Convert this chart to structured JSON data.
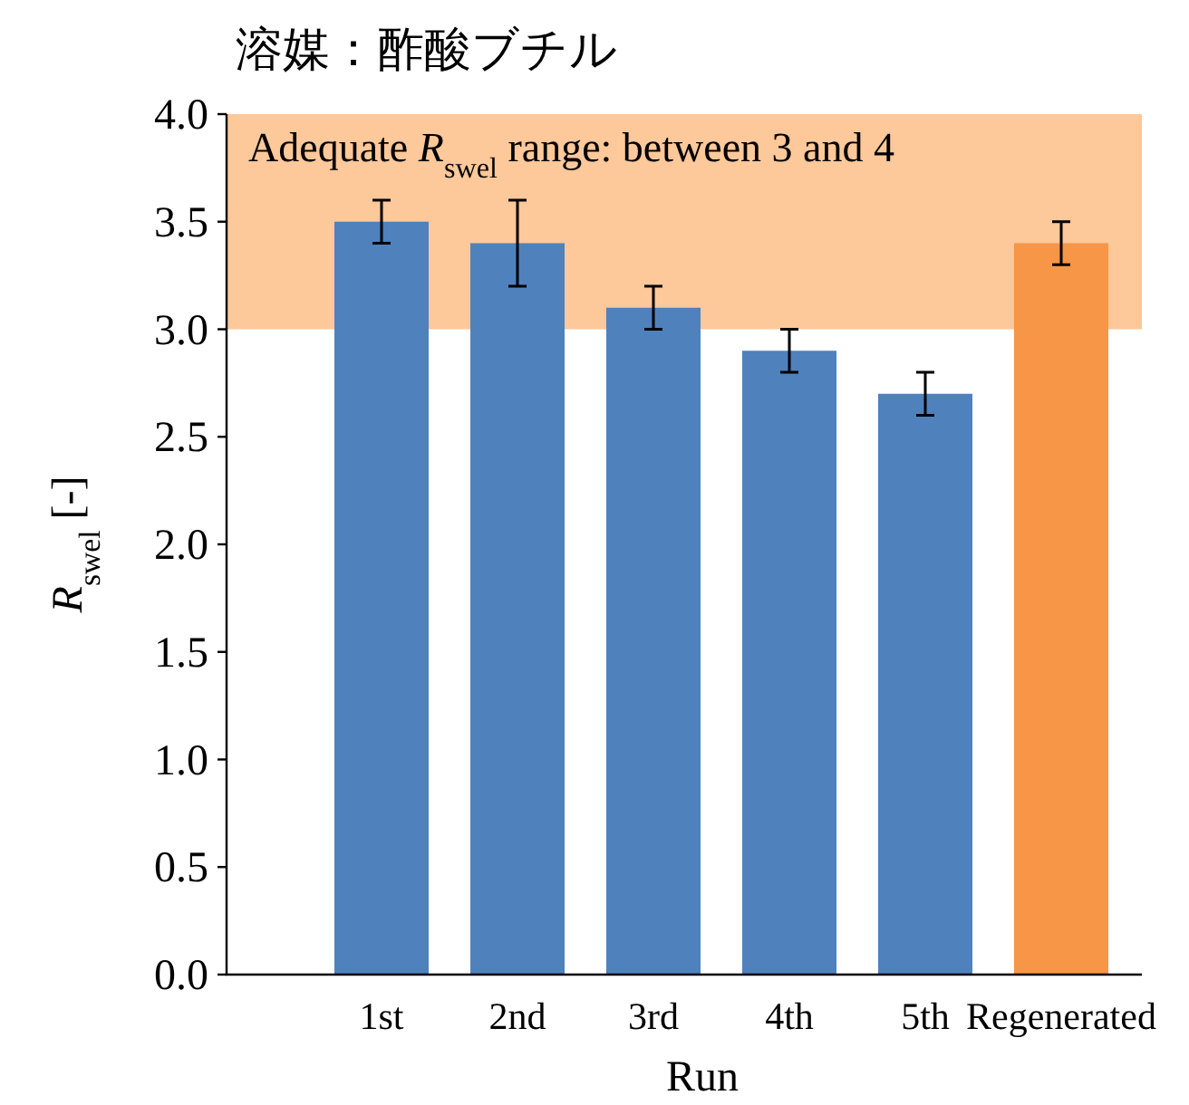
{
  "chart_data": {
    "type": "bar",
    "title": "溶媒：酢酸ブチル",
    "xlabel": "Run",
    "ylabel": "*R*$_{swel}$ [-]",
    "categories": [
      "1st",
      "2nd",
      "3rd",
      "4th",
      "5th",
      "Regenerated"
    ],
    "values": [
      3.5,
      3.4,
      3.1,
      2.9,
      2.7,
      3.4
    ],
    "colors": [
      "#4f81bd",
      "#4f81bd",
      "#4f81bd",
      "#4f81bd",
      "#4f81bd",
      "#f79646"
    ],
    "errors": [
      0.1,
      0.2,
      0.1,
      0.1,
      0.1,
      0.1
    ],
    "ylim": [
      0,
      4
    ],
    "yticks": [
      {
        "value": 0,
        "label": "0.0"
      },
      {
        "value": 0.5,
        "label": "0.5"
      },
      {
        "value": 1,
        "label": "1.0"
      },
      {
        "value": 1.5,
        "label": "1.5"
      },
      {
        "value": 2,
        "label": "2.0"
      },
      {
        "value": 2.5,
        "label": "2.5"
      },
      {
        "value": 3,
        "label": "3.0"
      },
      {
        "value": 3.5,
        "label": "3.5"
      },
      {
        "value": 4,
        "label": "4.0"
      }
    ],
    "bands": [
      {
        "axis": "y",
        "from": 3,
        "to": 4,
        "label": "Adequate *R*$_{swel}$ range: between 3 and 4",
        "color": "#fdc89a"
      }
    ]
  }
}
